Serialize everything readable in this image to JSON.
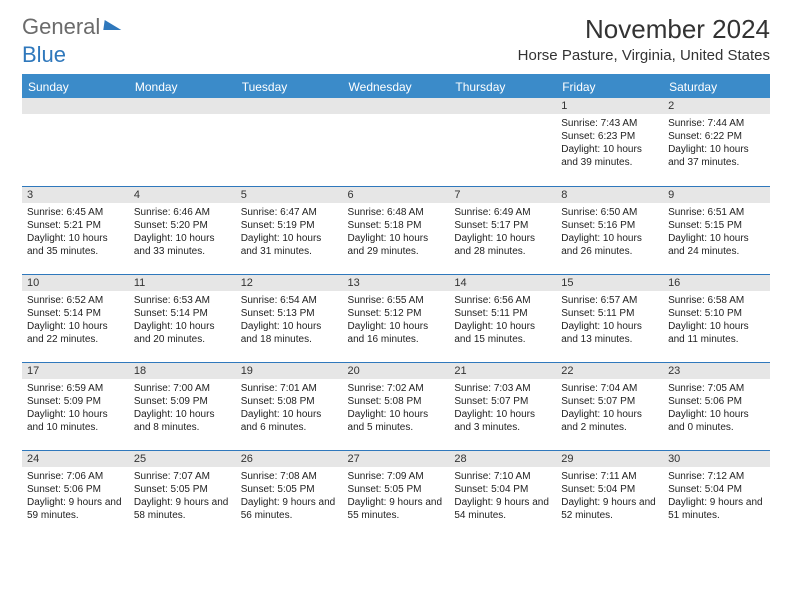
{
  "brand": {
    "part1": "General",
    "part2": "Blue"
  },
  "title": "November 2024",
  "location": "Horse Pasture, Virginia, United States",
  "colors": {
    "header_bg": "#3b8bc9",
    "row_divider": "#2f78bc",
    "daynum_bg": "#e6e6e6",
    "text": "#222222"
  },
  "weekdays": [
    "Sunday",
    "Monday",
    "Tuesday",
    "Wednesday",
    "Thursday",
    "Friday",
    "Saturday"
  ],
  "leading_blanks": 5,
  "days": [
    {
      "n": 1,
      "sunrise": "7:43 AM",
      "sunset": "6:23 PM",
      "daylight": "10 hours and 39 minutes."
    },
    {
      "n": 2,
      "sunrise": "7:44 AM",
      "sunset": "6:22 PM",
      "daylight": "10 hours and 37 minutes."
    },
    {
      "n": 3,
      "sunrise": "6:45 AM",
      "sunset": "5:21 PM",
      "daylight": "10 hours and 35 minutes."
    },
    {
      "n": 4,
      "sunrise": "6:46 AM",
      "sunset": "5:20 PM",
      "daylight": "10 hours and 33 minutes."
    },
    {
      "n": 5,
      "sunrise": "6:47 AM",
      "sunset": "5:19 PM",
      "daylight": "10 hours and 31 minutes."
    },
    {
      "n": 6,
      "sunrise": "6:48 AM",
      "sunset": "5:18 PM",
      "daylight": "10 hours and 29 minutes."
    },
    {
      "n": 7,
      "sunrise": "6:49 AM",
      "sunset": "5:17 PM",
      "daylight": "10 hours and 28 minutes."
    },
    {
      "n": 8,
      "sunrise": "6:50 AM",
      "sunset": "5:16 PM",
      "daylight": "10 hours and 26 minutes."
    },
    {
      "n": 9,
      "sunrise": "6:51 AM",
      "sunset": "5:15 PM",
      "daylight": "10 hours and 24 minutes."
    },
    {
      "n": 10,
      "sunrise": "6:52 AM",
      "sunset": "5:14 PM",
      "daylight": "10 hours and 22 minutes."
    },
    {
      "n": 11,
      "sunrise": "6:53 AM",
      "sunset": "5:14 PM",
      "daylight": "10 hours and 20 minutes."
    },
    {
      "n": 12,
      "sunrise": "6:54 AM",
      "sunset": "5:13 PM",
      "daylight": "10 hours and 18 minutes."
    },
    {
      "n": 13,
      "sunrise": "6:55 AM",
      "sunset": "5:12 PM",
      "daylight": "10 hours and 16 minutes."
    },
    {
      "n": 14,
      "sunrise": "6:56 AM",
      "sunset": "5:11 PM",
      "daylight": "10 hours and 15 minutes."
    },
    {
      "n": 15,
      "sunrise": "6:57 AM",
      "sunset": "5:11 PM",
      "daylight": "10 hours and 13 minutes."
    },
    {
      "n": 16,
      "sunrise": "6:58 AM",
      "sunset": "5:10 PM",
      "daylight": "10 hours and 11 minutes."
    },
    {
      "n": 17,
      "sunrise": "6:59 AM",
      "sunset": "5:09 PM",
      "daylight": "10 hours and 10 minutes."
    },
    {
      "n": 18,
      "sunrise": "7:00 AM",
      "sunset": "5:09 PM",
      "daylight": "10 hours and 8 minutes."
    },
    {
      "n": 19,
      "sunrise": "7:01 AM",
      "sunset": "5:08 PM",
      "daylight": "10 hours and 6 minutes."
    },
    {
      "n": 20,
      "sunrise": "7:02 AM",
      "sunset": "5:08 PM",
      "daylight": "10 hours and 5 minutes."
    },
    {
      "n": 21,
      "sunrise": "7:03 AM",
      "sunset": "5:07 PM",
      "daylight": "10 hours and 3 minutes."
    },
    {
      "n": 22,
      "sunrise": "7:04 AM",
      "sunset": "5:07 PM",
      "daylight": "10 hours and 2 minutes."
    },
    {
      "n": 23,
      "sunrise": "7:05 AM",
      "sunset": "5:06 PM",
      "daylight": "10 hours and 0 minutes."
    },
    {
      "n": 24,
      "sunrise": "7:06 AM",
      "sunset": "5:06 PM",
      "daylight": "9 hours and 59 minutes."
    },
    {
      "n": 25,
      "sunrise": "7:07 AM",
      "sunset": "5:05 PM",
      "daylight": "9 hours and 58 minutes."
    },
    {
      "n": 26,
      "sunrise": "7:08 AM",
      "sunset": "5:05 PM",
      "daylight": "9 hours and 56 minutes."
    },
    {
      "n": 27,
      "sunrise": "7:09 AM",
      "sunset": "5:05 PM",
      "daylight": "9 hours and 55 minutes."
    },
    {
      "n": 28,
      "sunrise": "7:10 AM",
      "sunset": "5:04 PM",
      "daylight": "9 hours and 54 minutes."
    },
    {
      "n": 29,
      "sunrise": "7:11 AM",
      "sunset": "5:04 PM",
      "daylight": "9 hours and 52 minutes."
    },
    {
      "n": 30,
      "sunrise": "7:12 AM",
      "sunset": "5:04 PM",
      "daylight": "9 hours and 51 minutes."
    }
  ]
}
